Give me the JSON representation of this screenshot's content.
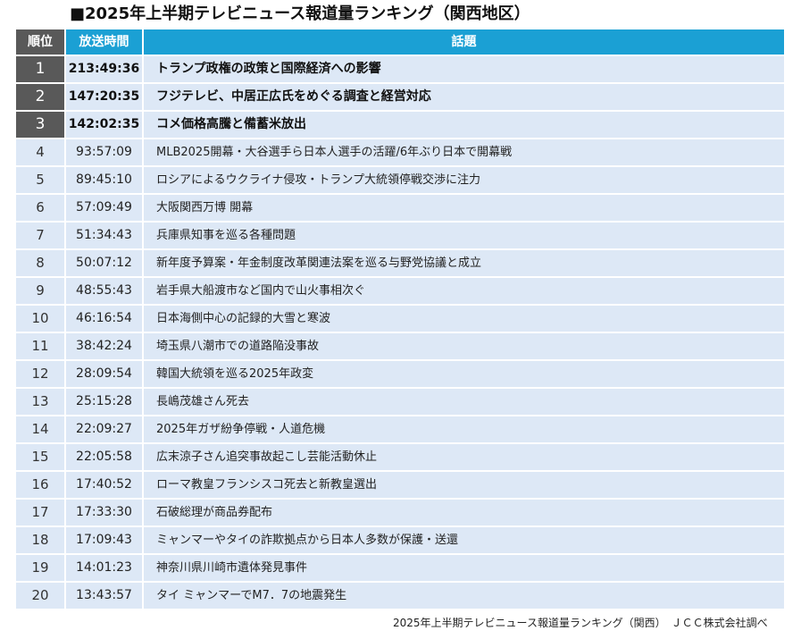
{
  "title": "■2025年上半期テレビニュース報道量ランキング（関西地区）",
  "headers": {
    "rank": "順位",
    "time": "放送時間",
    "topic": "話題"
  },
  "rows": [
    {
      "rank": "1",
      "time": "213:49:36",
      "topic": "トランプ政権の政策と国際経済への影響"
    },
    {
      "rank": "2",
      "time": "147:20:35",
      "topic": "フジテレビ、中居正広氏をめぐる調査と経営対応"
    },
    {
      "rank": "3",
      "time": "142:02:35",
      "topic": "コメ価格高騰と備蓄米放出"
    },
    {
      "rank": "4",
      "time": "93:57:09",
      "topic": "MLB2025開幕・大谷選手ら日本人選手の活躍/6年ぶり日本で開幕戦"
    },
    {
      "rank": "5",
      "time": "89:45:10",
      "topic": "ロシアによるウクライナ侵攻・トランプ大統領停戦交渉に注力"
    },
    {
      "rank": "6",
      "time": "57:09:49",
      "topic": "大阪関西万博 開幕"
    },
    {
      "rank": "7",
      "time": "51:34:43",
      "topic": "兵庫県知事を巡る各種問題"
    },
    {
      "rank": "8",
      "time": "50:07:12",
      "topic": "新年度予算案・年金制度改革関連法案を巡る与野党協議と成立"
    },
    {
      "rank": "9",
      "time": "48:55:43",
      "topic": "岩手県大船渡市など国内で山火事相次ぐ"
    },
    {
      "rank": "10",
      "time": "46:16:54",
      "topic": "日本海側中心の記録的大雪と寒波"
    },
    {
      "rank": "11",
      "time": "38:42:24",
      "topic": "埼玉県八潮市での道路陥没事故"
    },
    {
      "rank": "12",
      "time": "28:09:54",
      "topic": "韓国大統領を巡る2025年政変"
    },
    {
      "rank": "13",
      "time": "25:15:28",
      "topic": "長嶋茂雄さん死去"
    },
    {
      "rank": "14",
      "time": "22:09:27",
      "topic": "2025年ガザ紛争停戦・人道危機"
    },
    {
      "rank": "15",
      "time": "22:05:58",
      "topic": "広末涼子さん追突事故起こし芸能活動休止"
    },
    {
      "rank": "16",
      "time": "17:40:52",
      "topic": "ローマ教皇フランシスコ死去と新教皇選出"
    },
    {
      "rank": "17",
      "time": "17:33:30",
      "topic": "石破総理が商品券配布"
    },
    {
      "rank": "18",
      "time": "17:09:43",
      "topic": "ミャンマーやタイの詐欺拠点から日本人多数が保護・送還"
    },
    {
      "rank": "19",
      "time": "14:01:23",
      "topic": "神奈川県川崎市遺体発見事件"
    },
    {
      "rank": "20",
      "time": "13:43:57",
      "topic": "タイ ミャンマーでM7．7の地震発生"
    }
  ],
  "source": "2025年上半期テレビニュース報道量ランキング（関西）　ＪＣＣ株式会社調べ",
  "colors": {
    "header": "#1ba0d4",
    "top_rank": "#595959",
    "row_bg": "#dde8f6"
  }
}
